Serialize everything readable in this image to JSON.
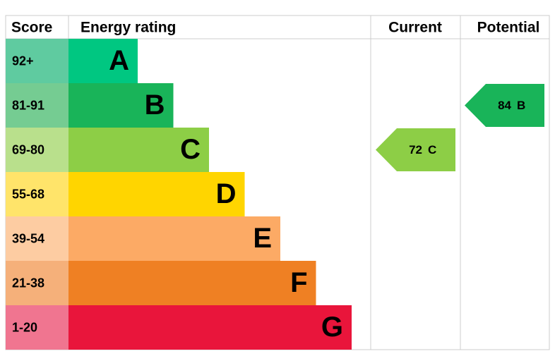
{
  "header": {
    "score": "Score",
    "rating": "Energy rating",
    "current": "Current",
    "potential": "Potential"
  },
  "rows": [
    {
      "score": "92+",
      "rating": "A",
      "color": "#00c781",
      "score_color": "#5fcba0"
    },
    {
      "score": "81-91",
      "rating": "B",
      "color": "#19b459",
      "score_color": "#75cc92"
    },
    {
      "score": "69-80",
      "rating": "C",
      "color": "#8dce46",
      "score_color": "#b9e08c"
    },
    {
      "score": "55-68",
      "rating": "D",
      "color": "#ffd500",
      "score_color": "#ffe46a"
    },
    {
      "score": "39-54",
      "rating": "E",
      "color": "#fcaa65",
      "score_color": "#fdcca2"
    },
    {
      "score": "21-38",
      "rating": "F",
      "color": "#ef8023",
      "score_color": "#f5b07a"
    },
    {
      "score": "1-20",
      "rating": "G",
      "color": "#e9153b",
      "score_color": "#f07590"
    }
  ],
  "current": {
    "value": 72,
    "rating": "C"
  },
  "potential": {
    "value": 84,
    "rating": "B"
  }
}
